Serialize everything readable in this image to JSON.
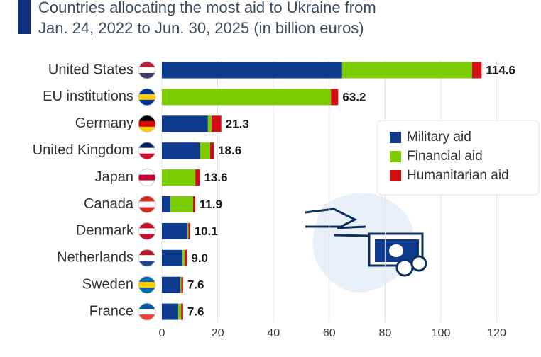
{
  "chart_data": {
    "type": "stacked-barh",
    "title": "Countries allocating the most aid to Ukraine from Jan. 24, 2022 to Jun. 30, 2025 (in billion euros)",
    "categories": [
      "United States",
      "EU institutions",
      "Germany",
      "United Kingdom",
      "Japan",
      "Canada",
      "Denmark",
      "Netherlands",
      "Sweden",
      "France"
    ],
    "series": [
      {
        "name": "Military aid",
        "color": "#0d3a8c",
        "values": [
          64.6,
          0,
          16.5,
          13.7,
          0,
          3.1,
          9.2,
          7.4,
          6.6,
          5.9
        ]
      },
      {
        "name": "Financial aid",
        "color": "#7ccc00",
        "values": [
          46.6,
          60.6,
          1.3,
          3.6,
          12.0,
          8.1,
          0.3,
          0.8,
          0.4,
          1.0
        ]
      },
      {
        "name": "Humanitarian aid",
        "color": "#d40f14",
        "values": [
          3.4,
          2.6,
          3.5,
          1.3,
          1.6,
          0.7,
          0.6,
          0.8,
          0.6,
          0.7
        ]
      }
    ],
    "totals": [
      114.6,
      63.2,
      21.3,
      18.6,
      13.6,
      11.9,
      10.1,
      9.0,
      7.6,
      7.6
    ],
    "value_labels": [
      "114.6",
      "63.2",
      "21.3",
      "18.6",
      "13.6",
      "11.9",
      "10.1",
      "9.0",
      "7.6",
      "7.6"
    ],
    "xlim": [
      0,
      130
    ],
    "xticks": [
      0,
      20,
      40,
      60,
      80,
      100,
      120
    ],
    "grid": true,
    "legend": "upper right"
  }
}
